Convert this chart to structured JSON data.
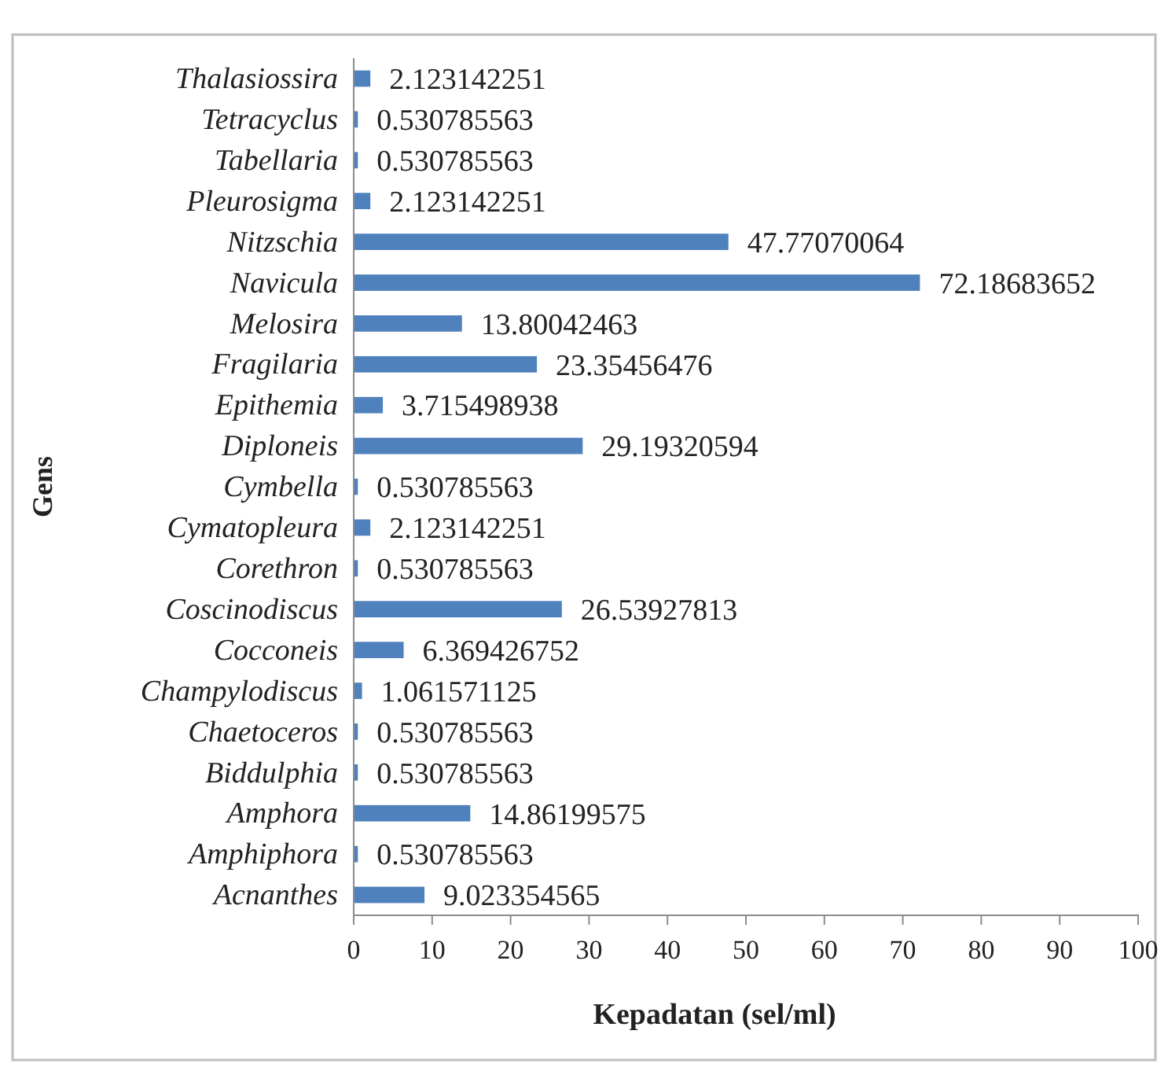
{
  "chart_data": {
    "type": "bar",
    "orientation": "horizontal",
    "xlabel": "Kepadatan (sel/ml)",
    "ylabel": "Gens",
    "categories": [
      "Thalasiossira",
      "Tetracyclus",
      "Tabellaria",
      "Pleurosigma",
      "Nitzschia",
      "Navicula",
      "Melosira",
      "Fragilaria",
      "Epithemia",
      "Diploneis",
      "Cymbella",
      "Cymatopleura",
      "Corethron",
      "Coscinodiscus",
      "Cocconeis",
      "Champylodiscus",
      "Chaetoceros",
      "Biddulphia",
      "Amphora",
      "Amphiphora",
      "Acnanthes"
    ],
    "values": [
      2.123142251,
      0.530785563,
      0.530785563,
      2.123142251,
      47.77070064,
      72.18683652,
      13.80042463,
      23.35456476,
      3.715498938,
      29.19320594,
      0.530785563,
      2.123142251,
      0.530785563,
      26.53927813,
      6.369426752,
      1.061571125,
      0.530785563,
      0.530785563,
      14.86199575,
      0.530785563,
      9.023354565
    ],
    "color": "#4f81bd",
    "data_labels": true,
    "xlim": [
      0,
      100
    ],
    "xticks": [
      0,
      10,
      20,
      30,
      40,
      50,
      60,
      70,
      80,
      90,
      100
    ]
  }
}
